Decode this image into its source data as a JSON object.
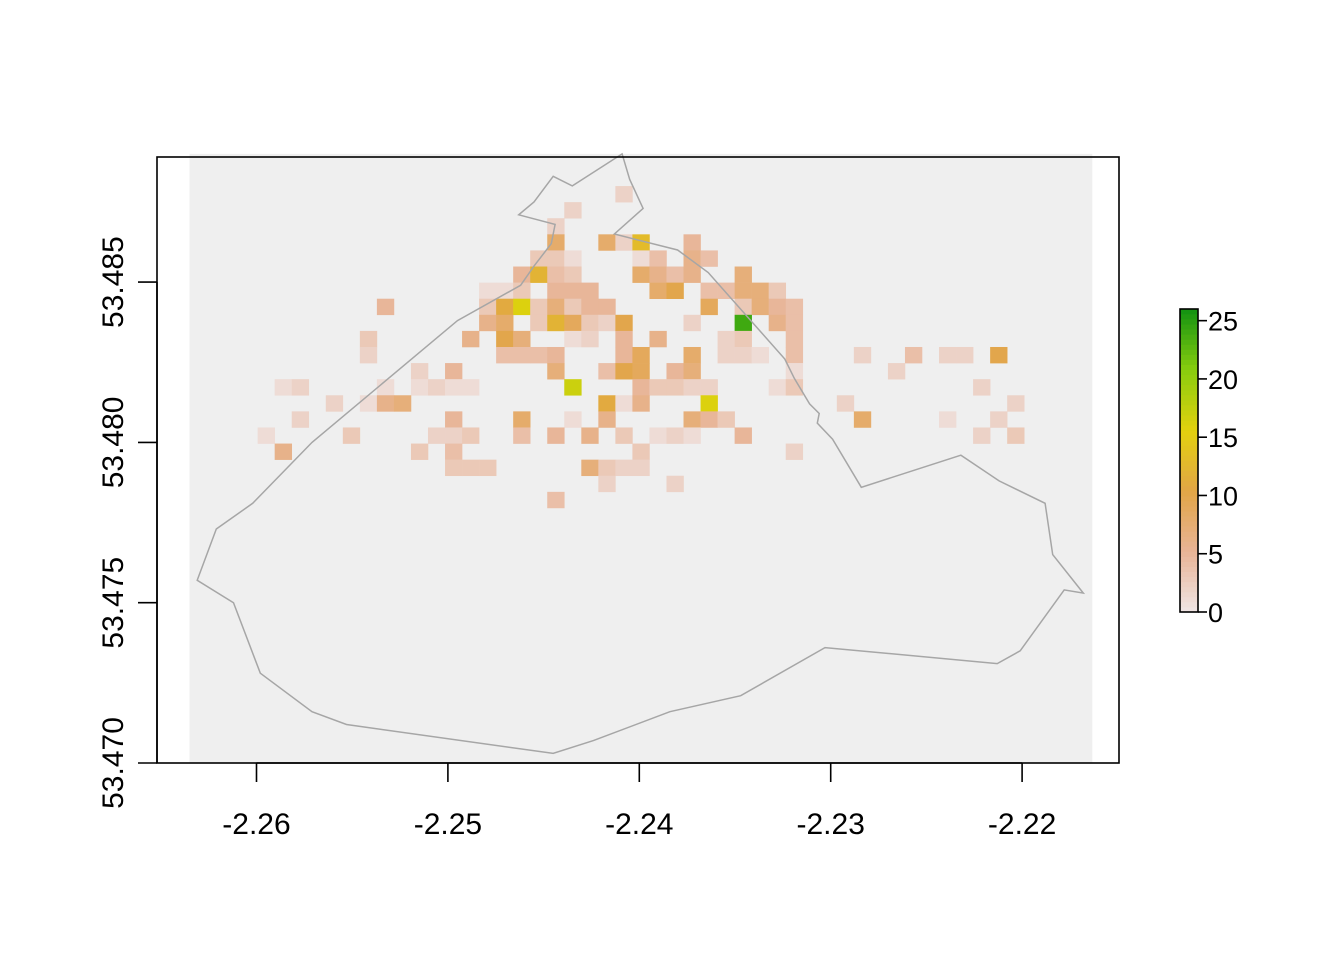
{
  "chart_data": {
    "type": "heatmap",
    "title": "",
    "xlabel": "",
    "ylabel": "",
    "xlim": [
      -2.2635,
      -2.2167
    ],
    "ylim": [
      53.47,
      53.489
    ],
    "x_ticks": [
      {
        "value": -2.26,
        "label": "-2.26"
      },
      {
        "value": -2.25,
        "label": "-2.25"
      },
      {
        "value": -2.24,
        "label": "-2.24"
      },
      {
        "value": -2.23,
        "label": "-2.23"
      },
      {
        "value": -2.22,
        "label": "-2.22"
      }
    ],
    "y_ticks": [
      {
        "value": 53.47,
        "label": "53.470"
      },
      {
        "value": 53.475,
        "label": "53.475"
      },
      {
        "value": 53.48,
        "label": "53.480"
      },
      {
        "value": 53.485,
        "label": "53.485"
      }
    ],
    "grid": false,
    "raster": {
      "cols": 53,
      "rows": 38,
      "x_start": -2.2635,
      "y_top": 53.489,
      "cell_x": 0.00089,
      "cell_y": 0.000502,
      "background_color": "#efefef",
      "cells": [
        [
          25,
          2,
          2
        ],
        [
          22,
          3,
          2
        ],
        [
          21,
          4,
          2
        ],
        [
          21,
          5,
          8
        ],
        [
          24,
          5,
          8
        ],
        [
          25,
          5,
          2
        ],
        [
          26,
          5,
          13
        ],
        [
          29,
          5,
          5
        ],
        [
          20,
          6,
          3
        ],
        [
          21,
          6,
          3
        ],
        [
          22,
          6,
          1
        ],
        [
          26,
          6,
          1
        ],
        [
          27,
          6,
          4
        ],
        [
          29,
          6,
          6
        ],
        [
          30,
          6,
          4
        ],
        [
          19,
          7,
          5
        ],
        [
          20,
          7,
          12
        ],
        [
          21,
          7,
          4
        ],
        [
          22,
          7,
          3
        ],
        [
          26,
          7,
          8
        ],
        [
          27,
          7,
          6
        ],
        [
          28,
          7,
          4
        ],
        [
          29,
          7,
          6
        ],
        [
          32,
          7,
          7
        ],
        [
          17,
          8,
          1
        ],
        [
          18,
          8,
          1
        ],
        [
          19,
          8,
          3
        ],
        [
          21,
          8,
          5
        ],
        [
          22,
          8,
          5
        ],
        [
          23,
          8,
          5
        ],
        [
          27,
          8,
          8
        ],
        [
          28,
          8,
          10
        ],
        [
          30,
          8,
          4
        ],
        [
          31,
          8,
          4
        ],
        [
          32,
          8,
          7
        ],
        [
          33,
          8,
          7
        ],
        [
          34,
          8,
          3
        ],
        [
          11,
          9,
          5
        ],
        [
          17,
          9,
          3
        ],
        [
          18,
          9,
          11
        ],
        [
          19,
          9,
          16
        ],
        [
          20,
          9,
          3
        ],
        [
          21,
          9,
          7
        ],
        [
          22,
          9,
          3
        ],
        [
          23,
          9,
          5
        ],
        [
          24,
          9,
          5
        ],
        [
          30,
          9,
          9
        ],
        [
          32,
          9,
          3
        ],
        [
          33,
          9,
          7
        ],
        [
          34,
          9,
          5
        ],
        [
          35,
          9,
          4
        ],
        [
          17,
          10,
          6
        ],
        [
          18,
          10,
          8
        ],
        [
          20,
          10,
          3
        ],
        [
          21,
          10,
          12
        ],
        [
          22,
          10,
          9
        ],
        [
          23,
          10,
          3
        ],
        [
          24,
          10,
          2
        ],
        [
          25,
          10,
          10
        ],
        [
          29,
          10,
          2
        ],
        [
          32,
          10,
          24
        ],
        [
          34,
          10,
          6
        ],
        [
          35,
          10,
          4
        ],
        [
          10,
          11,
          3
        ],
        [
          16,
          11,
          6
        ],
        [
          18,
          11,
          10
        ],
        [
          19,
          11,
          7
        ],
        [
          22,
          11,
          1
        ],
        [
          23,
          11,
          2
        ],
        [
          25,
          11,
          5
        ],
        [
          27,
          11,
          6
        ],
        [
          31,
          11,
          2
        ],
        [
          32,
          11,
          3
        ],
        [
          35,
          11,
          4
        ],
        [
          10,
          12,
          2
        ],
        [
          18,
          12,
          4
        ],
        [
          19,
          12,
          4
        ],
        [
          20,
          12,
          4
        ],
        [
          21,
          12,
          5
        ],
        [
          25,
          12,
          5
        ],
        [
          26,
          12,
          9
        ],
        [
          29,
          12,
          8
        ],
        [
          31,
          12,
          2
        ],
        [
          32,
          12,
          2
        ],
        [
          33,
          12,
          1
        ],
        [
          35,
          12,
          4
        ],
        [
          39,
          12,
          2
        ],
        [
          42,
          12,
          4
        ],
        [
          44,
          12,
          2
        ],
        [
          45,
          12,
          2
        ],
        [
          47,
          12,
          10
        ],
        [
          13,
          13,
          2
        ],
        [
          15,
          13,
          5
        ],
        [
          21,
          13,
          7
        ],
        [
          24,
          13,
          4
        ],
        [
          25,
          13,
          10
        ],
        [
          26,
          13,
          9
        ],
        [
          28,
          13,
          5
        ],
        [
          29,
          13,
          7
        ],
        [
          35,
          13,
          1
        ],
        [
          41,
          13,
          2
        ],
        [
          5,
          14,
          1
        ],
        [
          6,
          14,
          2
        ],
        [
          11,
          14,
          1
        ],
        [
          13,
          14,
          1
        ],
        [
          14,
          14,
          2
        ],
        [
          15,
          14,
          1
        ],
        [
          16,
          14,
          1
        ],
        [
          22,
          14,
          17
        ],
        [
          26,
          14,
          5
        ],
        [
          27,
          14,
          3
        ],
        [
          28,
          14,
          3
        ],
        [
          29,
          14,
          2
        ],
        [
          30,
          14,
          2
        ],
        [
          34,
          14,
          1
        ],
        [
          35,
          14,
          3
        ],
        [
          46,
          14,
          2
        ],
        [
          8,
          15,
          2
        ],
        [
          10,
          15,
          1
        ],
        [
          11,
          15,
          6
        ],
        [
          12,
          15,
          7
        ],
        [
          24,
          15,
          11
        ],
        [
          25,
          15,
          1
        ],
        [
          26,
          15,
          6
        ],
        [
          30,
          15,
          16
        ],
        [
          38,
          15,
          2
        ],
        [
          48,
          15,
          2
        ],
        [
          6,
          16,
          2
        ],
        [
          15,
          16,
          5
        ],
        [
          19,
          16,
          8
        ],
        [
          22,
          16,
          1
        ],
        [
          24,
          16,
          6
        ],
        [
          29,
          16,
          7
        ],
        [
          30,
          16,
          5
        ],
        [
          31,
          16,
          3
        ],
        [
          39,
          16,
          8
        ],
        [
          44,
          16,
          1
        ],
        [
          47,
          16,
          2
        ],
        [
          4,
          17,
          1
        ],
        [
          9,
          17,
          3
        ],
        [
          14,
          17,
          2
        ],
        [
          15,
          17,
          2
        ],
        [
          16,
          17,
          3
        ],
        [
          19,
          17,
          4
        ],
        [
          21,
          17,
          5
        ],
        [
          23,
          17,
          6
        ],
        [
          25,
          17,
          3
        ],
        [
          27,
          17,
          1
        ],
        [
          28,
          17,
          2
        ],
        [
          29,
          17,
          1
        ],
        [
          32,
          17,
          5
        ],
        [
          46,
          17,
          2
        ],
        [
          48,
          17,
          3
        ],
        [
          5,
          18,
          6
        ],
        [
          13,
          18,
          3
        ],
        [
          15,
          18,
          4
        ],
        [
          26,
          18,
          3
        ],
        [
          35,
          18,
          2
        ],
        [
          15,
          19,
          3
        ],
        [
          16,
          19,
          3
        ],
        [
          17,
          19,
          3
        ],
        [
          23,
          19,
          7
        ],
        [
          24,
          19,
          3
        ],
        [
          25,
          19,
          2
        ],
        [
          26,
          19,
          2
        ],
        [
          24,
          20,
          2
        ],
        [
          28,
          20,
          2
        ],
        [
          21,
          21,
          4
        ]
      ]
    },
    "boundary": [
      [
        -2.2621,
        53.4773
      ],
      [
        -2.2631,
        53.4757
      ],
      [
        -2.2612,
        53.475
      ],
      [
        -2.2598,
        53.4728
      ],
      [
        -2.2571,
        53.4716
      ],
      [
        -2.2553,
        53.4712
      ],
      [
        -2.2445,
        53.4703
      ],
      [
        -2.2424,
        53.4707
      ],
      [
        -2.2384,
        53.4716
      ],
      [
        -2.2347,
        53.4721
      ],
      [
        -2.2303,
        53.4736
      ],
      [
        -2.2213,
        53.4731
      ],
      [
        -2.2201,
        53.4735
      ],
      [
        -2.2178,
        53.4754
      ],
      [
        -2.2168,
        53.4753
      ],
      [
        -2.2184,
        53.4765
      ],
      [
        -2.2188,
        53.4781
      ],
      [
        -2.2212,
        53.4788
      ],
      [
        -2.2232,
        53.4796
      ],
      [
        -2.2284,
        53.4786
      ],
      [
        -2.2299,
        53.4801
      ],
      [
        -2.2307,
        53.4806
      ],
      [
        -2.2306,
        53.4809
      ],
      [
        -2.2311,
        53.4812
      ],
      [
        -2.2319,
        53.482
      ],
      [
        -2.2324,
        53.4826
      ],
      [
        -2.2364,
        53.4853
      ],
      [
        -2.238,
        53.486
      ],
      [
        -2.2413,
        53.4865
      ],
      [
        -2.2398,
        53.4873
      ],
      [
        -2.2405,
        53.4882
      ],
      [
        -2.2409,
        53.489
      ],
      [
        -2.2435,
        53.488
      ],
      [
        -2.2445,
        53.4883
      ],
      [
        -2.2455,
        53.4875
      ],
      [
        -2.2463,
        53.4871
      ],
      [
        -2.2444,
        53.4868
      ],
      [
        -2.2446,
        53.4862
      ],
      [
        -2.2455,
        53.4855
      ],
      [
        -2.2462,
        53.4849
      ],
      [
        -2.2495,
        53.4838
      ],
      [
        -2.2571,
        53.48
      ],
      [
        -2.2602,
        53.4781
      ]
    ],
    "legend": {
      "position": "right",
      "min": 0,
      "max": 26,
      "ticks": [
        {
          "value": 0,
          "label": "0"
        },
        {
          "value": 5,
          "label": "5"
        },
        {
          "value": 10,
          "label": "10"
        },
        {
          "value": 15,
          "label": "15"
        },
        {
          "value": 20,
          "label": "20"
        },
        {
          "value": 25,
          "label": "25"
        }
      ],
      "colors": [
        "#efe5e5",
        "#e8b496",
        "#e2a546",
        "#e3d10e",
        "#88cd0e",
        "#119211"
      ]
    }
  }
}
